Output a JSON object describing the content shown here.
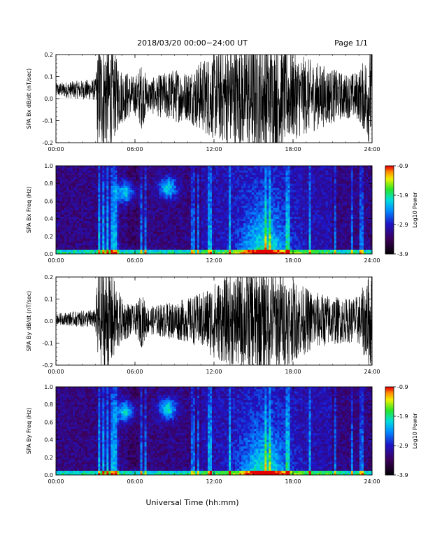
{
  "header": {
    "title": "2018/03/20  00:00−24:00 UT",
    "page": "Page 1/1"
  },
  "footer": {
    "xlabel": "Universal Time (hh:mm)"
  },
  "chart_data": [
    {
      "type": "line",
      "name": "bx_waveform",
      "ylabel": "SPA Bx dB/dt (nT/sec)",
      "ylim": [
        -0.2,
        0.2
      ],
      "yticks": [
        "-0.2",
        "-0.1",
        "0.0",
        "0.1",
        "0.2"
      ],
      "xlim_hours": [
        0,
        24
      ],
      "xticks": [
        "00:00",
        "06:00",
        "12:00",
        "18:00",
        "24:00"
      ],
      "amplitude_envelope": {
        "hours": [
          0,
          1,
          2,
          3,
          3.2,
          4,
          5,
          6,
          6.5,
          7,
          8,
          9,
          10,
          11,
          12,
          13,
          14,
          15,
          16,
          17,
          18,
          19,
          20,
          21,
          22,
          23,
          24
        ],
        "amp": [
          0.025,
          0.03,
          0.035,
          0.04,
          0.2,
          0.2,
          0.1,
          0.07,
          0.12,
          0.06,
          0.08,
          0.1,
          0.09,
          0.13,
          0.16,
          0.18,
          0.19,
          0.21,
          0.2,
          0.19,
          0.16,
          0.14,
          0.12,
          0.1,
          0.08,
          0.09,
          0.2
        ]
      },
      "baseline": 0.04
    },
    {
      "type": "heatmap",
      "name": "bx_spectrogram",
      "ylabel": "SPA Bx Freq (Hz)",
      "ylim": [
        0,
        1
      ],
      "yticks": [
        "0.0",
        "0.2",
        "0.4",
        "0.6",
        "0.8",
        "1.0"
      ],
      "xlim_hours": [
        0,
        24
      ],
      "xticks": [
        "00:00",
        "06:00",
        "12:00",
        "18:00",
        "24:00"
      ],
      "colorbar": {
        "label": "Log10 Power",
        "ticks": [
          "-0.9",
          "-1.9",
          "-2.9",
          "-3.9"
        ],
        "range": [
          -3.9,
          -0.9
        ]
      },
      "features": [
        {
          "hour": 5.3,
          "freq": 0.7,
          "label": "pulsation_patch_1"
        },
        {
          "hour": 8.5,
          "freq": 0.75,
          "label": "pulsation_patch_2"
        },
        {
          "hour": 15.8,
          "freq": 0.25,
          "label": "broadband_peak"
        }
      ]
    },
    {
      "type": "line",
      "name": "by_waveform",
      "ylabel": "SPA By dB/dt (nT/sec)",
      "ylim": [
        -0.2,
        0.2
      ],
      "yticks": [
        "-0.2",
        "-0.1",
        "0.0",
        "0.1",
        "0.2"
      ],
      "xlim_hours": [
        0,
        24
      ],
      "xticks": [
        "00:00",
        "06:00",
        "12:00",
        "18:00",
        "24:00"
      ],
      "amplitude_envelope": {
        "hours": [
          0,
          1,
          2,
          3,
          3.2,
          4,
          5,
          6,
          6.5,
          7,
          8,
          9,
          10,
          11,
          12,
          13,
          14,
          15,
          16,
          17,
          18,
          19,
          20,
          21,
          22,
          23,
          24
        ],
        "amp": [
          0.02,
          0.025,
          0.03,
          0.035,
          0.2,
          0.2,
          0.08,
          0.05,
          0.1,
          0.05,
          0.06,
          0.07,
          0.08,
          0.1,
          0.14,
          0.16,
          0.18,
          0.2,
          0.19,
          0.18,
          0.15,
          0.12,
          0.1,
          0.09,
          0.08,
          0.09,
          0.2
        ]
      },
      "baseline": 0.01
    },
    {
      "type": "heatmap",
      "name": "by_spectrogram",
      "ylabel": "SPA By Freq (Hz)",
      "ylim": [
        0,
        1
      ],
      "yticks": [
        "0.0",
        "0.2",
        "0.4",
        "0.6",
        "0.8",
        "1.0"
      ],
      "xlim_hours": [
        0,
        24
      ],
      "xticks": [
        "00:00",
        "06:00",
        "12:00",
        "18:00",
        "24:00"
      ],
      "colorbar": {
        "label": "Log10 Power",
        "ticks": [
          "-0.9",
          "-1.9",
          "-2.9",
          "-3.9"
        ],
        "range": [
          -3.9,
          -0.9
        ]
      },
      "features": [
        {
          "hour": 5.3,
          "freq": 0.72,
          "label": "pulsation_patch_1"
        },
        {
          "hour": 8.5,
          "freq": 0.75,
          "label": "pulsation_patch_2"
        },
        {
          "hour": 15.8,
          "freq": 0.25,
          "label": "broadband_peak"
        }
      ]
    }
  ]
}
